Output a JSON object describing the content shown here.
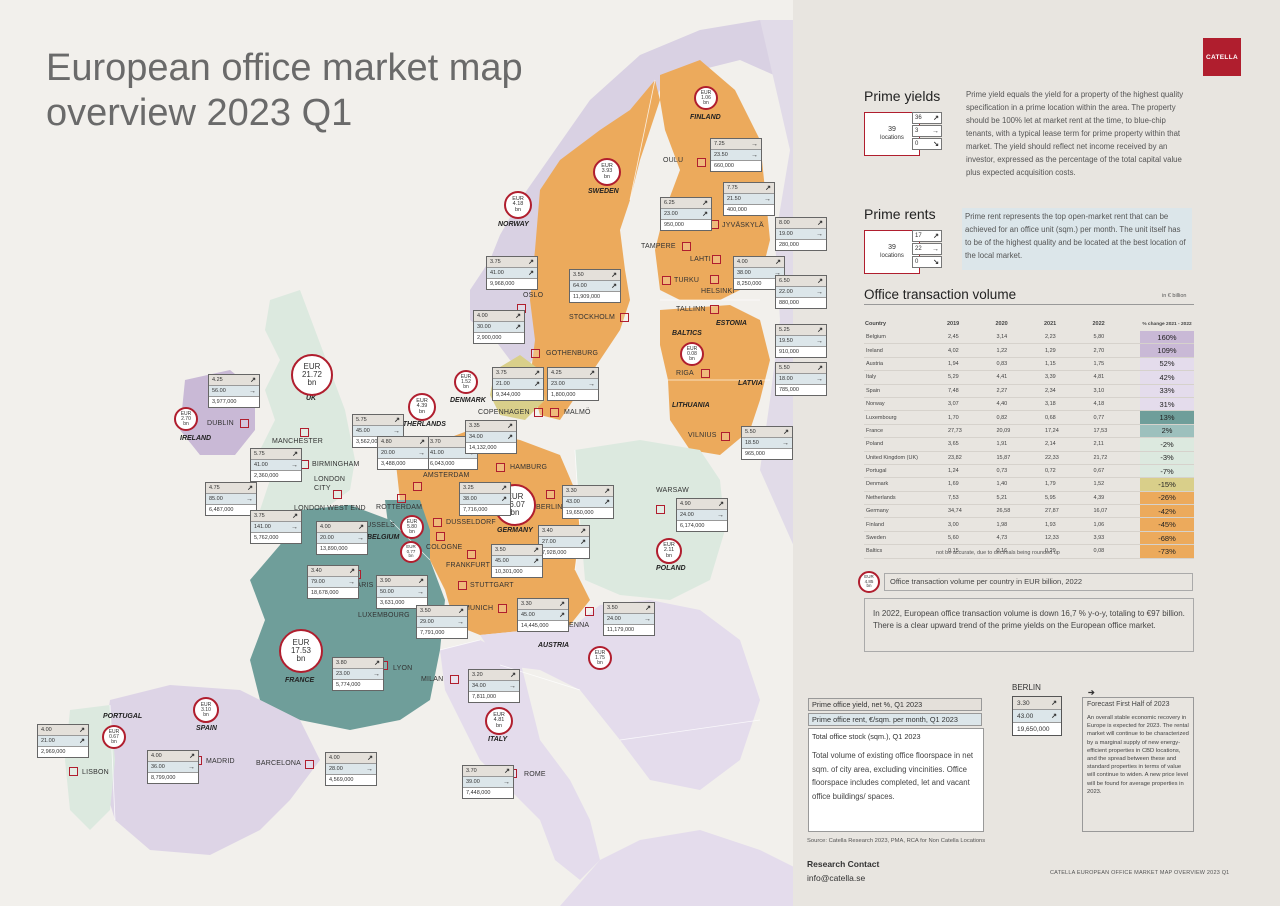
{
  "title": "European office market map overview 2023 Q1",
  "brand": "CATELLA",
  "colors": {
    "orange": "#ecaa5c",
    "teal": "#6f9e9a",
    "lavender": "#d9d1e3",
    "lightgreen": "#dce9df",
    "accent": "#b01e2e"
  },
  "countries": [
    {
      "label": "FINLAND",
      "eur": "1.06"
    },
    {
      "label": "SWEDEN",
      "eur": "3.93"
    },
    {
      "label": "NORWAY",
      "eur": "4.18"
    },
    {
      "label": "DENMARK",
      "eur": "1.52"
    },
    {
      "label": "NETHERLANDS",
      "eur": "4.39"
    },
    {
      "label": "UK",
      "eur": "21.72"
    },
    {
      "label": "IRELAND",
      "eur": "2.70"
    },
    {
      "label": "BELGIUM",
      "eur": "5.80"
    },
    {
      "label": "GERMANY",
      "eur": "16.07"
    },
    {
      "label": "FRANCE",
      "eur": "17.53"
    },
    {
      "label": "POLAND",
      "eur": "2.11"
    },
    {
      "label": "AUSTRIA",
      "eur": "1.75"
    },
    {
      "label": "ITALY",
      "eur": "4.81"
    },
    {
      "label": "SPAIN",
      "eur": "3.10"
    },
    {
      "label": "PORTUGAL",
      "eur": "0.67"
    },
    {
      "label": "BALTICS",
      "eur": "0.08"
    },
    {
      "label": "LUXEMBOURG",
      "eur": "0.77"
    }
  ],
  "extra_labels": {
    "estonia": "ESTONIA",
    "latvia": "LATVIA",
    "lithuania": "LITHUANIA"
  },
  "cities": [
    {
      "name": "OULU",
      "yield": "7.25",
      "rent": "23.50",
      "stock": "660,000",
      "dir": [
        "→",
        "→"
      ]
    },
    {
      "name": "JYVÄSKYLÄ",
      "yield": "7.75",
      "rent": "21.50",
      "stock": "400,000",
      "dir": [
        "↗",
        "→"
      ]
    },
    {
      "name": "TAMPERE",
      "yield": "6.25",
      "rent": "23.00",
      "stock": "950,000",
      "dir": [
        "↗",
        "↗"
      ]
    },
    {
      "name": "LAHTI",
      "yield": "8.00",
      "rent": "19.00",
      "stock": "280,000",
      "dir": [
        "↗",
        "→"
      ]
    },
    {
      "name": "TURKU",
      "yield": "4.00",
      "rent": "38.00",
      "stock": "8,250,000",
      "dir": [
        "↗",
        "→"
      ]
    },
    {
      "name": "HELSINKI",
      "yield": "6.50",
      "rent": "22.00",
      "stock": "880,000",
      "dir": [
        "↗",
        "→"
      ]
    },
    {
      "name": "TALLINN",
      "yield": "5.25",
      "rent": "19.50",
      "stock": "910,000",
      "dir": [
        "↗",
        "→"
      ]
    },
    {
      "name": "RIGA",
      "yield": "5.50",
      "rent": "18.00",
      "stock": "785,000",
      "dir": [
        "↗",
        "→"
      ]
    },
    {
      "name": "VILNIUS",
      "yield": "5.50",
      "rent": "18.50",
      "stock": "965,000",
      "dir": [
        "↗",
        "→"
      ]
    },
    {
      "name": "OSLO",
      "yield": "3.75",
      "rent": "41.00",
      "stock": "9,968,000",
      "dir": [
        "↗",
        "↗"
      ]
    },
    {
      "name": "STOCKHOLM",
      "yield": "3.50",
      "rent": "64.00",
      "stock": "11,909,000",
      "dir": [
        "↗",
        "↗"
      ]
    },
    {
      "name": "GOTHENBURG",
      "yield": "4.00",
      "rent": "30.00",
      "stock": "2,900,000",
      "dir": [
        "↗",
        "↗"
      ]
    },
    {
      "name": "COPENHAGEN",
      "yield": "3.75",
      "rent": "21.00",
      "stock": "9,344,000",
      "dir": [
        "↗",
        "↗"
      ]
    },
    {
      "name": "MALMÖ",
      "yield": "4.25",
      "rent": "23.00",
      "stock": "1,800,000",
      "dir": [
        "↗",
        "→"
      ]
    },
    {
      "name": "DUBLIN",
      "yield": "4.25",
      "rent": "56.00",
      "stock": "3,977,000",
      "dir": [
        "↗",
        "→"
      ]
    },
    {
      "name": "MANCHESTER",
      "yield": "5.75",
      "rent": "45.00",
      "stock": "3,562,000",
      "dir": [
        "↗",
        "→"
      ]
    },
    {
      "name": "BIRMINGHAM",
      "yield": "5.75",
      "rent": "41.00",
      "stock": "2,360,000",
      "dir": [
        "↗",
        "→"
      ]
    },
    {
      "name": "LONDON CITY",
      "yield": "4.75",
      "rent": "85.00",
      "stock": "6,487,000",
      "dir": [
        "↗",
        "→"
      ]
    },
    {
      "name": "LONDON WEST END",
      "yield": "3.75",
      "rent": "141.00",
      "stock": "5,762,000",
      "dir": [
        "↗",
        "→"
      ]
    },
    {
      "name": "AMSTERDAM",
      "yield": "3.70",
      "rent": "41.00",
      "stock": "6,043,000",
      "dir": [
        "↗",
        "→"
      ]
    },
    {
      "name": "ROTTERDAM",
      "yield": "4.80",
      "rent": "20.00",
      "stock": "3,488,000",
      "dir": [
        "↗",
        "→"
      ]
    },
    {
      "name": "BRUSSELS",
      "yield": "4.00",
      "rent": "20.00",
      "stock": "13,890,000",
      "dir": [
        "↗",
        "→"
      ]
    },
    {
      "name": "HAMBURG",
      "yield": "3.35",
      "rent": "34.00",
      "stock": "14,132,000",
      "dir": [
        "↗",
        "↗"
      ]
    },
    {
      "name": "DUSSELDORF",
      "yield": "3.25",
      "rent": "38.00",
      "stock": "7,716,000",
      "dir": [
        "↗",
        "↗"
      ]
    },
    {
      "name": "BERLIN",
      "yield": "3.30",
      "rent": "43.00",
      "stock": "19,650,000",
      "dir": [
        "↗",
        "↗"
      ]
    },
    {
      "name": "COLOGNE",
      "yield": "3.40",
      "rent": "27.00",
      "stock": "7,928,000",
      "dir": [
        "↗",
        "↗"
      ]
    },
    {
      "name": "FRANKFURT",
      "yield": "3.50",
      "rent": "45.00",
      "stock": "10,301,000",
      "dir": [
        "↗",
        "↗"
      ]
    },
    {
      "name": "STUTTGART",
      "yield": "",
      "rent": "",
      "stock": "",
      "dir": [
        "",
        ""
      ]
    },
    {
      "name": "MUNICH",
      "yield": "3.30",
      "rent": "45.00",
      "stock": "14,445,000",
      "dir": [
        "↗",
        "↗"
      ]
    },
    {
      "name": "WARSAW",
      "yield": "4.90",
      "rent": "24.00",
      "stock": "6,174,000",
      "dir": [
        "↗",
        "→"
      ]
    },
    {
      "name": "VIENNA",
      "yield": "3.50",
      "rent": "24.00",
      "stock": "11,179,000",
      "dir": [
        "↗",
        "→"
      ]
    },
    {
      "name": "PARIS",
      "yield": "3.40",
      "rent": "79.00",
      "stock": "18,678,000",
      "dir": [
        "↗",
        "→"
      ]
    },
    {
      "name": "LUXEMBOURG",
      "yield": "3.90",
      "rent": "50.00",
      "stock": "3,631,000",
      "dir": [
        "↗",
        "→"
      ]
    },
    {
      "name": "STUTTGART2",
      "yield": "3.50",
      "rent": "29.00",
      "stock": "7,791,000",
      "dir": [
        "↗",
        "→"
      ]
    },
    {
      "name": "LYON",
      "yield": "3.80",
      "rent": "23.00",
      "stock": "5,774,000",
      "dir": [
        "↗",
        "→"
      ]
    },
    {
      "name": "MILAN",
      "yield": "3.20",
      "rent": "34.00",
      "stock": "7,811,000",
      "dir": [
        "↗",
        "→"
      ]
    },
    {
      "name": "ROME",
      "yield": "3.70",
      "rent": "39.00",
      "stock": "7,448,000",
      "dir": [
        "↗",
        "→"
      ]
    },
    {
      "name": "MADRID",
      "yield": "4.00",
      "rent": "36.00",
      "stock": "8,799,000",
      "dir": [
        "↗",
        "→"
      ]
    },
    {
      "name": "BARCELONA",
      "yield": "4.00",
      "rent": "28.00",
      "stock": "4,569,000",
      "dir": [
        "↗",
        "→"
      ]
    },
    {
      "name": "LISBON",
      "yield": "4.00",
      "rent": "21.00",
      "stock": "2,969,000",
      "dir": [
        "↗",
        "↗"
      ]
    }
  ],
  "panel": {
    "prime_yields": {
      "heading": "Prime yields",
      "locations": "39",
      "locations_label": "locations",
      "counts": [
        "36",
        "3",
        "0"
      ],
      "description": "Prime yield equals the yield for a property of the highest quality specification in a prime location within the area. The property should be 100% let at market rent at the time, to blue-chip tenants, with a typical lease term for prime property within that market. The yield should reflect net income received by an investor, expressed as the percentage of the total capital value plus expected acquisition costs."
    },
    "prime_rents": {
      "heading": "Prime rents",
      "locations": "39",
      "locations_label": "locations",
      "counts": [
        "17",
        "22",
        "0"
      ],
      "description": "Prime rent represents the top open-market rent that can be achieved for an office unit (sqm.) per month. The unit itself has to be of the highest quality and be located at the best location of the local market."
    },
    "otv": {
      "heading": "Office transaction volume",
      "unit": "in € billion",
      "columns": [
        "Country",
        "2019",
        "2020",
        "2021",
        "2022",
        "% change 2021 - 2022"
      ],
      "rows": [
        [
          "Belgium",
          "2,45",
          "3,14",
          "2,23",
          "5,80",
          "160%"
        ],
        [
          "Ireland",
          "4,02",
          "1,22",
          "1,29",
          "2,70",
          "109%"
        ],
        [
          "Austria",
          "1,94",
          "0,83",
          "1,15",
          "1,75",
          "52%"
        ],
        [
          "Italy",
          "5,29",
          "4,41",
          "3,39",
          "4,81",
          "42%"
        ],
        [
          "Spain",
          "7,48",
          "2,27",
          "2,34",
          "3,10",
          "33%"
        ],
        [
          "Norway",
          "3,07",
          "4,40",
          "3,18",
          "4,18",
          "31%"
        ],
        [
          "Luxembourg",
          "1,70",
          "0,82",
          "0,68",
          "0,77",
          "13%"
        ],
        [
          "France",
          "27,73",
          "20,09",
          "17,24",
          "17,53",
          "2%"
        ],
        [
          "Poland",
          "3,65",
          "1,91",
          "2,14",
          "2,11",
          "-2%"
        ],
        [
          "United Kingdom (UK)",
          "23,82",
          "15,87",
          "22,33",
          "21,72",
          "-3%"
        ],
        [
          "Portugal",
          "1,24",
          "0,73",
          "0,72",
          "0,67",
          "-7%"
        ],
        [
          "Denmark",
          "1,69",
          "1,40",
          "1,79",
          "1,52",
          "-15%"
        ],
        [
          "Netherlands",
          "7,53",
          "5,21",
          "5,95",
          "4,39",
          "-26%"
        ],
        [
          "Germany",
          "34,74",
          "26,58",
          "27,87",
          "16,07",
          "-42%"
        ],
        [
          "Finland",
          "3,00",
          "1,98",
          "1,93",
          "1,06",
          "-45%"
        ],
        [
          "Sweden",
          "5,60",
          "4,73",
          "12,33",
          "3,93",
          "-68%"
        ],
        [
          "Baltics",
          "0,15",
          "0,16",
          "0,29",
          "0,08",
          "-73%"
        ]
      ],
      "row_colors": [
        "#c9b9d6",
        "#c9b9d6",
        "#e4dcec",
        "#e4dcec",
        "#e4dcec",
        "#e4dcec",
        "#6f9e9a",
        "#9dc0bd",
        "#dce9df",
        "#dce9df",
        "#dce9df",
        "#d9cf8a",
        "#ecaa5c",
        "#ecaa5c",
        "#ecaa5c",
        "#ecaa5c",
        "#ecaa5c"
      ],
      "footnote": "not be accurate, due to decimals being rounded up"
    },
    "legend_bubble": {
      "eur": "EUR",
      "value": "4.85",
      "unit": "bn",
      "label": "Office transaction volume per country in EUR billion, 2022"
    },
    "summary": "In 2022, European office transaction volume is down 16,7 % y-o-y, totaling to €97 billion. There is a clear upward trend of the prime yields on the European office market.",
    "key": {
      "yield_label": "Prime office yield, net %, Q1 2023",
      "rent_label": "Prime office rent, €/sqm. per month, Q1 2023",
      "stock_label": "Total office stock (sqm.), Q1 2023",
      "stock_desc": "Total volume of existing office floorspace in net sqm. of city area, excluding vincinities. Office floorspace includes completed, let and vacant office buildings/ spaces.",
      "example_city": "BERLIN",
      "example_yield": "3.30",
      "example_rent": "43.00",
      "example_stock": "19,650,000"
    },
    "forecast": {
      "title": "Forecast First Half of 2023",
      "text": "An overall stable economic recovery in Europe is expected for 2023. The rental market will continue to be characterized by a marginal supply of new energy-efficient properties in CBD locations, and the spread between these and standard properties in terms of value will continue to widen. A new price level will be found for average properties in 2023."
    },
    "source": "Source: Catella Research 2023, PMA, RCA for Non Catella Locations",
    "contact_heading": "Research Contact",
    "contact_email": "info@catella.se",
    "footer": "CATELLA EUROPEAN OFFICE MARKET MAP OVERVIEW 2023 Q1"
  }
}
